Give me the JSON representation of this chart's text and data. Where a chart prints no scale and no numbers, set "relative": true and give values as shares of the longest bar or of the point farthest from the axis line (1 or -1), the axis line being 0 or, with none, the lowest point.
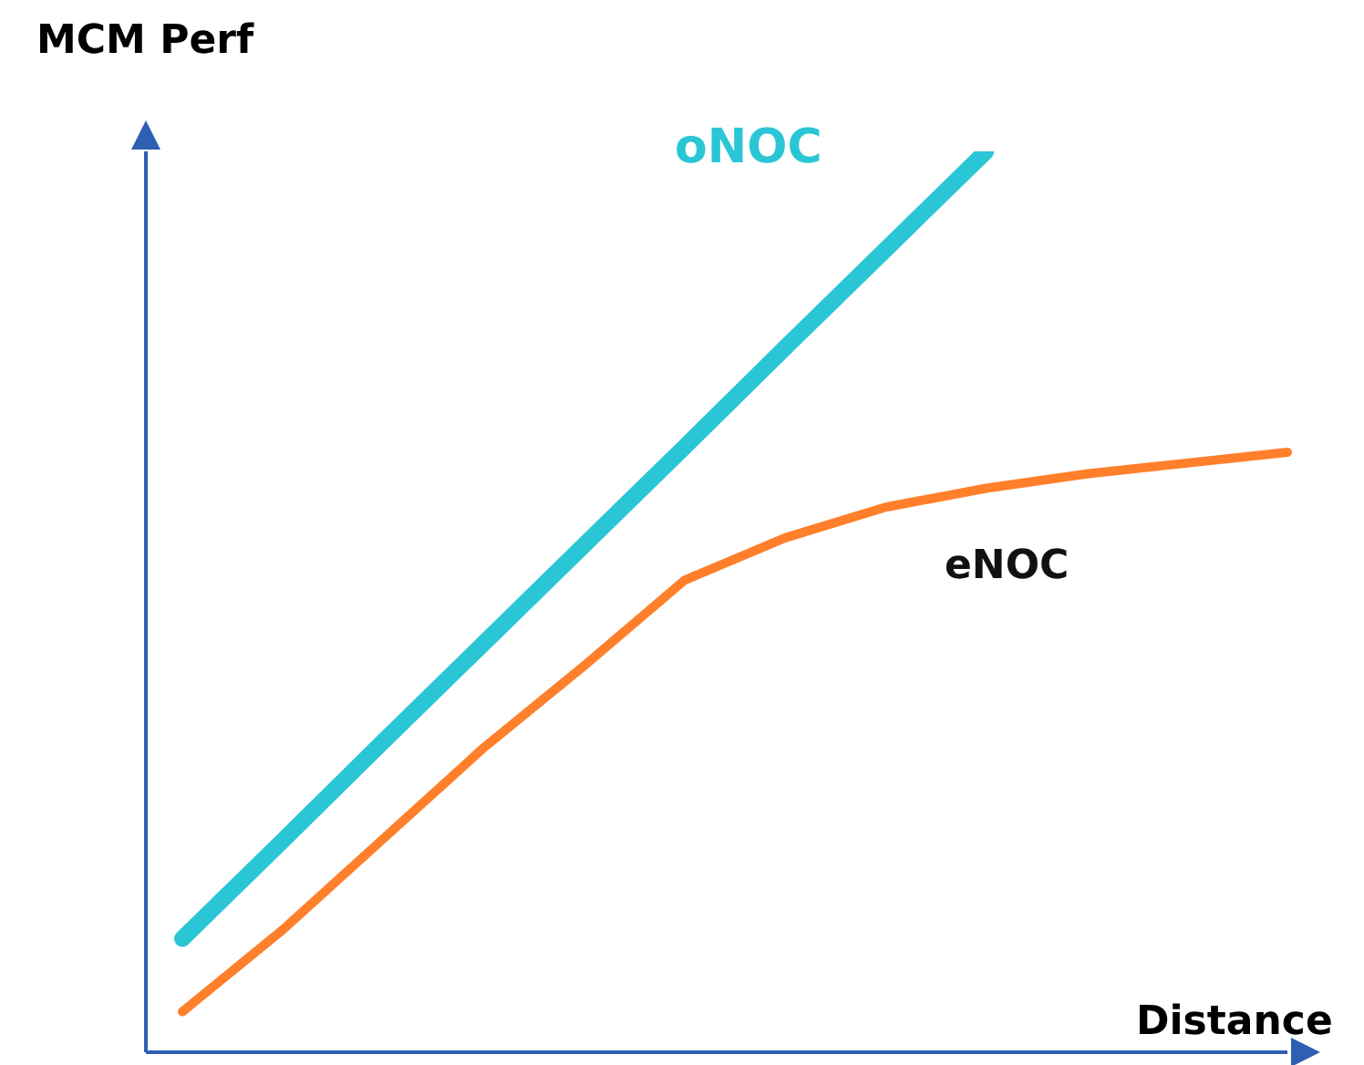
{
  "chart_data": {
    "type": "line",
    "relative": true,
    "xlabel": "Distance",
    "ylabel": "MCM Perf",
    "categories": [
      null,
      null,
      null,
      null,
      null,
      null,
      null,
      null,
      null,
      null,
      null,
      null
    ],
    "series": [
      {
        "name": "oNOC",
        "color": "#2bc6d6",
        "values": [
          0.126,
          0.235,
          0.345,
          0.454,
          0.563,
          0.672,
          0.782,
          0.891,
          1.0,
          null,
          null,
          null
        ]
      },
      {
        "name": "eNOC",
        "color": "#ff7f2a",
        "values": [
          0.045,
          0.136,
          0.237,
          0.338,
          0.429,
          0.524,
          0.571,
          0.605,
          0.626,
          0.642,
          0.654,
          0.666
        ]
      }
    ]
  }
}
